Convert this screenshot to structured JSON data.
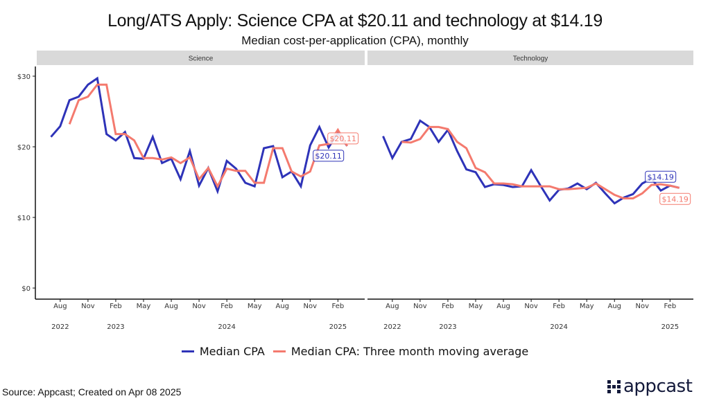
{
  "chart_data": {
    "type": "line",
    "title": "Long/ATS Apply: Science CPA at $20.11 and technology at $14.19",
    "subtitle": "Median cost-per-application (CPA), monthly",
    "xlabel": "",
    "ylabel": "",
    "ylim": [
      0,
      30
    ],
    "yticks": [
      0,
      10,
      20,
      30
    ],
    "ytick_labels": [
      "$0",
      "$10",
      "$20",
      "$30"
    ],
    "x_start": "2022-07",
    "x_end": "2025-03",
    "xtick_labels": [
      {
        "month": "Aug",
        "year": "2022",
        "index": 1
      },
      {
        "month": "Nov",
        "year": "",
        "index": 4
      },
      {
        "month": "Feb",
        "year": "2023",
        "index": 7
      },
      {
        "month": "May",
        "year": "",
        "index": 10
      },
      {
        "month": "Aug",
        "year": "",
        "index": 13
      },
      {
        "month": "Nov",
        "year": "",
        "index": 16
      },
      {
        "month": "Feb",
        "year": "2024",
        "index": 19
      },
      {
        "month": "May",
        "year": "",
        "index": 22
      },
      {
        "month": "Aug",
        "year": "",
        "index": 25
      },
      {
        "month": "Nov",
        "year": "",
        "index": 28
      },
      {
        "month": "Feb",
        "year": "2025",
        "index": 31
      }
    ],
    "grid": false,
    "legend_position": "bottom",
    "legend": [
      "Median CPA",
      "Median CPA: Three month moving average"
    ],
    "series_colors": {
      "median": "#2e33b8",
      "moving_avg": "#f47a6e"
    },
    "panels": [
      {
        "name": "Science",
        "series": [
          {
            "name": "Median CPA",
            "values": [
              21.4,
              22.9,
              26.6,
              27.1,
              28.8,
              29.7,
              21.8,
              20.9,
              22.1,
              18.4,
              18.3,
              21.4,
              17.7,
              18.3,
              15.4,
              19.4,
              14.5,
              17.0,
              13.7,
              18.0,
              16.9,
              14.9,
              14.4,
              19.8,
              20.1,
              15.7,
              16.5,
              14.4,
              20.2,
              22.8,
              19.9,
              22.0,
              20.11
            ]
          },
          {
            "name": "Median CPA: Three month moving average",
            "values": [
              null,
              null,
              23.2,
              26.6,
              27.1,
              28.8,
              28.8,
              21.8,
              21.8,
              20.9,
              18.4,
              18.4,
              18.2,
              18.5,
              17.7,
              18.5,
              15.4,
              17.0,
              14.4,
              16.9,
              16.6,
              16.6,
              14.9,
              14.9,
              19.8,
              19.8,
              16.5,
              15.8,
              16.5,
              20.2,
              20.4,
              22.4,
              20.11
            ]
          }
        ],
        "end_labels": {
          "median": "$20.11",
          "moving_avg": "$20.11"
        }
      },
      {
        "name": "Technology",
        "series": [
          {
            "name": "Median CPA",
            "values": [
              21.5,
              18.4,
              20.7,
              21.1,
              23.7,
              22.8,
              20.7,
              22.4,
              19.4,
              16.8,
              16.4,
              14.3,
              14.7,
              14.6,
              14.3,
              14.4,
              16.7,
              14.5,
              12.4,
              13.9,
              14.1,
              14.8,
              14.0,
              14.9,
              13.4,
              12.0,
              12.8,
              13.3,
              14.8,
              15.5,
              13.8,
              14.5,
              14.19
            ]
          },
          {
            "name": "Median CPA: Three month moving average",
            "values": [
              null,
              null,
              20.7,
              20.6,
              21.1,
              22.8,
              22.8,
              22.5,
              20.7,
              19.8,
              17.0,
              16.4,
              14.8,
              14.8,
              14.7,
              14.4,
              14.4,
              14.4,
              14.4,
              14.0,
              14.0,
              14.1,
              14.2,
              14.8,
              14.0,
              13.2,
              12.7,
              12.7,
              13.4,
              14.6,
              14.7,
              14.5,
              14.19
            ]
          }
        ],
        "end_labels": {
          "median": "$14.19",
          "moving_avg": "$14.19"
        }
      }
    ]
  },
  "footer": {
    "source": "Source: Appcast; Created on Apr 08 2025",
    "logo_text": "appcast"
  }
}
